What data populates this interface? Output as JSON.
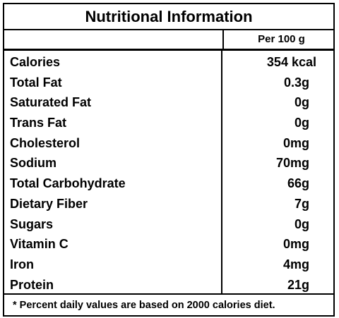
{
  "title": "Nutritional Information",
  "header": {
    "per_label": "Per 100 g"
  },
  "nutrients": [
    {
      "name": "Calories",
      "value": "354 kcal"
    },
    {
      "name": "Total Fat",
      "value": "0.3g"
    },
    {
      "name": "Saturated Fat",
      "value": "0g"
    },
    {
      "name": "Trans Fat",
      "value": "0g"
    },
    {
      "name": "Cholesterol",
      "value": "0mg"
    },
    {
      "name": "Sodium",
      "value": "70mg"
    },
    {
      "name": "Total Carbohydrate",
      "value": "66g"
    },
    {
      "name": "Dietary Fiber",
      "value": "7g"
    },
    {
      "name": "Sugars",
      "value": "0g"
    },
    {
      "name": "Vitamin C",
      "value": "0mg"
    },
    {
      "name": "Iron",
      "value": "4mg"
    },
    {
      "name": "Protein",
      "value": "21g"
    }
  ],
  "footnote": "* Percent daily values are based on 2000 calories diet."
}
